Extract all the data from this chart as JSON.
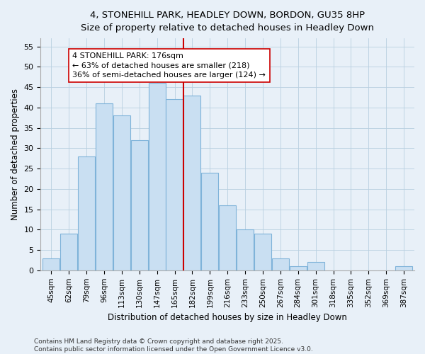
{
  "title1": "4, STONEHILL PARK, HEADLEY DOWN, BORDON, GU35 8HP",
  "title2": "Size of property relative to detached houses in Headley Down",
  "xlabel": "Distribution of detached houses by size in Headley Down",
  "ylabel": "Number of detached properties",
  "categories": [
    "45sqm",
    "62sqm",
    "79sqm",
    "96sqm",
    "113sqm",
    "130sqm",
    "147sqm",
    "165sqm",
    "182sqm",
    "199sqm",
    "216sqm",
    "233sqm",
    "250sqm",
    "267sqm",
    "284sqm",
    "301sqm",
    "318sqm",
    "335sqm",
    "352sqm",
    "369sqm",
    "387sqm"
  ],
  "values": [
    3,
    9,
    28,
    41,
    38,
    32,
    46,
    42,
    43,
    24,
    16,
    10,
    9,
    3,
    1,
    2,
    0,
    0,
    0,
    0,
    1
  ],
  "bar_color": "#c9dff2",
  "bar_edge_color": "#7fb3d9",
  "vline_x_index": 8.0,
  "vline_color": "#cc0000",
  "annotation_text": "4 STONEHILL PARK: 176sqm\n← 63% of detached houses are smaller (218)\n36% of semi-detached houses are larger (124) →",
  "annotation_box_color": "#ffffff",
  "annotation_box_edge": "#cc0000",
  "ylim": [
    0,
    57
  ],
  "yticks": [
    0,
    5,
    10,
    15,
    20,
    25,
    30,
    35,
    40,
    45,
    50,
    55
  ],
  "grid_color": "#b8cfe0",
  "bg_color": "#e8f0f8",
  "footer": "Contains HM Land Registry data © Crown copyright and database right 2025.\nContains public sector information licensed under the Open Government Licence v3.0."
}
